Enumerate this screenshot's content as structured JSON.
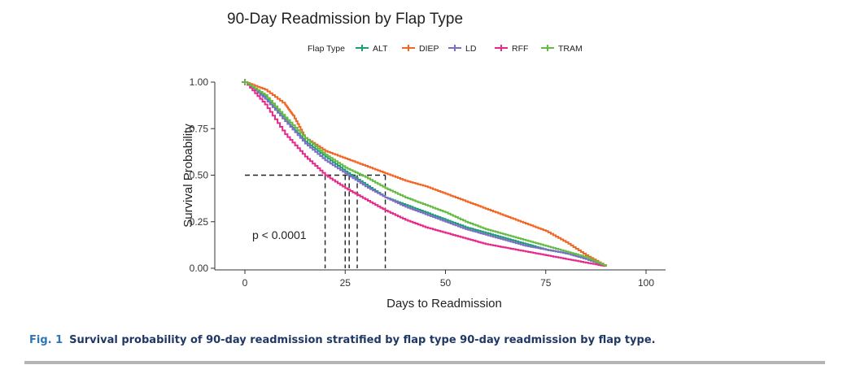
{
  "chart_data": {
    "type": "line",
    "title": "90-Day Readmission by Flap Type",
    "xlabel": "Days to Readmission",
    "ylabel": "Survival Probability",
    "xlim": [
      0,
      100
    ],
    "ylim": [
      0,
      1
    ],
    "x_ticks": [
      0,
      25,
      50,
      75,
      100
    ],
    "y_ticks": [
      0.0,
      0.25,
      0.5,
      0.75,
      1.0
    ],
    "y_tick_labels": [
      "0.00",
      "0.25",
      "0.50",
      "0.75",
      "1.00"
    ],
    "grid": false,
    "legend_title": "Flap Type",
    "legend_position": "top",
    "annotation": "p < 0.0001",
    "median_line_y": 0.5,
    "medians": [
      20,
      25,
      26,
      28,
      35
    ],
    "series": [
      {
        "name": "ALT",
        "color": "#1b9e77",
        "x": [
          0,
          5,
          10,
          15,
          20,
          25,
          30,
          35,
          40,
          45,
          50,
          55,
          60,
          65,
          70,
          75,
          80,
          85,
          90
        ],
        "y": [
          1.0,
          0.92,
          0.8,
          0.68,
          0.6,
          0.52,
          0.45,
          0.38,
          0.34,
          0.3,
          0.26,
          0.22,
          0.19,
          0.16,
          0.13,
          0.1,
          0.08,
          0.05,
          0.01
        ]
      },
      {
        "name": "DIEP",
        "color": "#f26522",
        "x": [
          0,
          5,
          10,
          12,
          15,
          20,
          25,
          30,
          35,
          40,
          45,
          50,
          55,
          60,
          65,
          70,
          75,
          80,
          85,
          90
        ],
        "y": [
          1.0,
          0.96,
          0.88,
          0.82,
          0.7,
          0.63,
          0.59,
          0.55,
          0.51,
          0.47,
          0.44,
          0.4,
          0.36,
          0.32,
          0.28,
          0.24,
          0.2,
          0.14,
          0.07,
          0.01
        ]
      },
      {
        "name": "LD",
        "color": "#7b6fc4",
        "x": [
          0,
          5,
          10,
          15,
          20,
          25,
          30,
          35,
          40,
          45,
          50,
          55,
          60,
          65,
          70,
          75,
          80,
          85,
          90
        ],
        "y": [
          1.0,
          0.91,
          0.79,
          0.67,
          0.58,
          0.51,
          0.44,
          0.38,
          0.33,
          0.29,
          0.25,
          0.21,
          0.18,
          0.15,
          0.12,
          0.1,
          0.08,
          0.05,
          0.01
        ]
      },
      {
        "name": "RFF",
        "color": "#e7298a",
        "x": [
          0,
          5,
          10,
          15,
          20,
          25,
          30,
          35,
          40,
          45,
          50,
          55,
          60,
          65,
          70,
          75,
          80,
          85,
          90
        ],
        "y": [
          1.0,
          0.88,
          0.72,
          0.6,
          0.5,
          0.43,
          0.37,
          0.31,
          0.26,
          0.22,
          0.19,
          0.16,
          0.13,
          0.11,
          0.09,
          0.07,
          0.05,
          0.03,
          0.01
        ]
      },
      {
        "name": "TRAM",
        "color": "#66bb44",
        "x": [
          0,
          5,
          10,
          15,
          20,
          25,
          30,
          35,
          40,
          45,
          50,
          55,
          60,
          65,
          70,
          75,
          80,
          85,
          90
        ],
        "y": [
          1.0,
          0.93,
          0.81,
          0.7,
          0.61,
          0.54,
          0.49,
          0.43,
          0.38,
          0.34,
          0.3,
          0.25,
          0.21,
          0.18,
          0.15,
          0.12,
          0.09,
          0.06,
          0.01
        ]
      }
    ]
  },
  "caption": {
    "fig_label": "Fig. 1",
    "text": "Survival probability of 90-day readmission stratified by flap type 90-day readmission by flap type."
  }
}
